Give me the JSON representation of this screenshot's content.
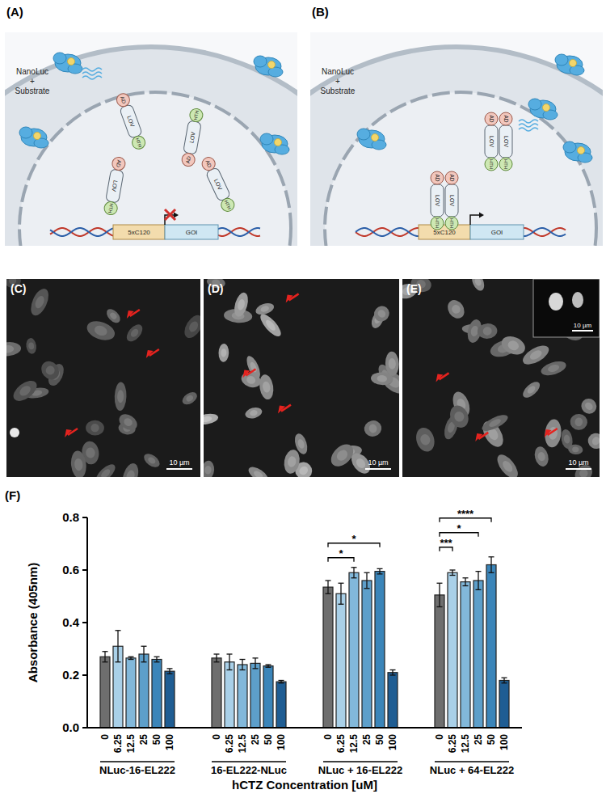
{
  "figure": {
    "panels": [
      {
        "label": "(A)",
        "substrate_text": [
          "NanoLuc",
          "+",
          "Substrate"
        ],
        "domains": {
          "lov": "LOV",
          "ad": "AD",
          "hth": "HTH"
        },
        "promoter": "5xC120",
        "gene": "GOI"
      },
      {
        "label": "(B)",
        "substrate_text": [
          "NanoLuc",
          "+",
          "Substrate"
        ],
        "domains": {
          "lov": "LOV",
          "ad": "AD",
          "hth": "HTH"
        },
        "promoter": "5xC120",
        "gene": "GOI"
      }
    ],
    "micrographs": [
      {
        "label": "(C)",
        "scale_bar": "10 µm"
      },
      {
        "label": "(D)",
        "scale_bar": "10 µm"
      },
      {
        "label": "(E)",
        "scale_bar": "10 µm",
        "inset_scale_bar": "10 µm"
      }
    ]
  },
  "chart_data": {
    "type": "bar",
    "panel_label": "(F)",
    "y_label": "Absorbance (405nm)",
    "x_label": "hCTZ Concentration [uM]",
    "categories": [
      "0",
      "6.25",
      "12.5",
      "25",
      "50",
      "100",
      "0",
      "6.25",
      "12.5",
      "25",
      "50",
      "100",
      "0",
      "6.25",
      "12.5",
      "25",
      "50",
      "100",
      "0",
      "6.25",
      "12.5",
      "25",
      "50",
      "100"
    ],
    "values": [
      0.27,
      0.31,
      0.265,
      0.28,
      0.26,
      0.215,
      0.265,
      0.25,
      0.24,
      0.245,
      0.235,
      0.175,
      0.535,
      0.51,
      0.59,
      0.56,
      0.595,
      0.21,
      0.505,
      0.59,
      0.555,
      0.56,
      0.62,
      0.18
    ],
    "errors": [
      0.02,
      0.06,
      0.005,
      0.03,
      0.01,
      0.01,
      0.015,
      0.03,
      0.02,
      0.02,
      0.005,
      0.005,
      0.025,
      0.04,
      0.02,
      0.03,
      0.01,
      0.01,
      0.045,
      0.01,
      0.015,
      0.035,
      0.03,
      0.01
    ],
    "colors": [
      "#6e6e6e",
      "#a9d0e8",
      "#82b8da",
      "#5d9fca",
      "#3b85b9",
      "#1f5d93",
      "#6e6e6e",
      "#a9d0e8",
      "#82b8da",
      "#5d9fca",
      "#3b85b9",
      "#1f5d93",
      "#6e6e6e",
      "#a9d0e8",
      "#82b8da",
      "#5d9fca",
      "#3b85b9",
      "#1f5d93",
      "#6e6e6e",
      "#a9d0e8",
      "#82b8da",
      "#5d9fca",
      "#3b85b9",
      "#1f5d93"
    ],
    "groups": [
      {
        "label": "NLuc-16-EL222",
        "start": 0,
        "end": 5
      },
      {
        "label": "16-EL222-NLuc",
        "start": 6,
        "end": 11
      },
      {
        "label": "NLuc + 16-EL222",
        "start": 12,
        "end": 17
      },
      {
        "label": "NLuc + 64-EL222",
        "start": 18,
        "end": 23
      }
    ],
    "annotations": [
      {
        "from": 12,
        "to": 14,
        "label": "*"
      },
      {
        "from": 12,
        "to": 16,
        "label": "*"
      },
      {
        "from": 18,
        "to": 19,
        "label": "***"
      },
      {
        "from": 18,
        "to": 21,
        "label": "*"
      },
      {
        "from": 18,
        "to": 22,
        "label": "****"
      }
    ],
    "ylim": [
      0,
      0.8
    ],
    "yticks": [
      {
        "value": 0,
        "label": "0.0"
      },
      {
        "value": 0.2,
        "label": "0.2"
      },
      {
        "value": 0.4,
        "label": "0.4"
      },
      {
        "value": 0.6,
        "label": "0.6"
      },
      {
        "value": 0.8,
        "label": "0.8"
      }
    ],
    "grid": false
  }
}
